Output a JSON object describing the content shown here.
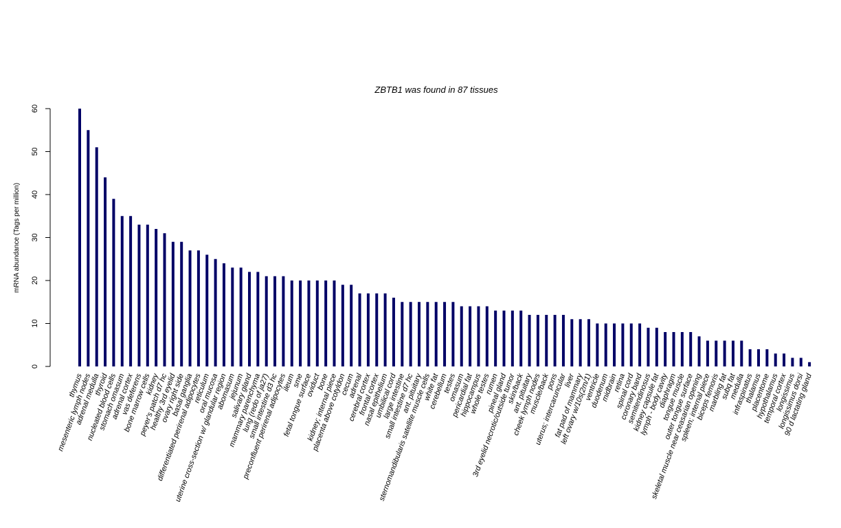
{
  "chart_data": {
    "type": "bar",
    "title": "ZBTB1  was found in  87  tissues",
    "ylabel": "mRNA abundance (Tags per million)",
    "xlabel": "",
    "ylim": [
      0,
      60
    ],
    "yticks": [
      0,
      10,
      20,
      30,
      40,
      50,
      60
    ],
    "bar_color": "#000066",
    "categories": [
      "thymus",
      "mesenteric lymph nodes",
      "adrenal medulla",
      "thyroid",
      "nucleated blood cells",
      "stomach omasum",
      "adrenal cortex",
      "vas deferens",
      "bone marrow cells",
      "kidney",
      "peyer's patch d7 hc",
      "healthy 3rd eyelid",
      "ovary right side",
      "basal ganglia",
      "differentiated perirenal adipocytes",
      "reticulum",
      "oral mucosa",
      "uterine cross-section w/ glandular region",
      "abomasum",
      "jejunum",
      "salivary gland",
      "mammary parenchyma",
      "lung (redo of ja27)",
      "small intestine d3 hc",
      "preconfluent perirenal adipocytes",
      "ileum",
      "sme",
      "fetal tongue surface",
      "oviduct",
      "bone",
      "kidney; internal piece",
      "placenta above cotyldon",
      "cecum",
      "adrenal",
      "cerebral cortex",
      "frontal cortex",
      "nasal epithelium",
      "umbilical cord",
      "large intestine",
      "small intestine d7 hc",
      "ant. pituitary",
      "sternomandibularis satellite muscle cells",
      "white fat",
      "cerebellum",
      "testes",
      "omasum",
      "pericardial fat",
      "hippocampus",
      "whole testes",
      "rumen",
      "pineal gland",
      "3rd eyelid necrotic/outside tumor",
      "skin/back",
      "ant. pituitary",
      "cheek lymph nodes",
      "muscle/back",
      "pons",
      "uterus; intercaruncular",
      "liver",
      "fat pad of mammary",
      "left ovary w/10s(2m/1)",
      "ventricle",
      "duodenum",
      "midbrain",
      "retina",
      "spinal cord",
      "coronary band",
      "semitendinosus",
      "kidney capsule fat",
      "lymph - body cavity",
      "diaphragm",
      "tongue muscle",
      "outer tongue surface",
      "skeletal muscle near ceasarian opening",
      "spleen; internal piece",
      "biceps femoris",
      "marbling fat",
      "subq fat",
      "medulla",
      "infraspinatus",
      "thalamus",
      "placentome",
      "hypothalamus",
      "temporal cortex",
      "longissimus",
      "longissimus dorsi",
      "90 d lactating gland"
    ],
    "values": [
      60,
      55,
      51,
      44,
      39,
      35,
      35,
      33,
      33,
      32,
      31,
      29,
      29,
      27,
      27,
      26,
      25,
      24,
      23,
      23,
      22,
      22,
      21,
      21,
      21,
      20,
      20,
      20,
      20,
      20,
      20,
      19,
      19,
      17,
      17,
      17,
      17,
      16,
      15,
      15,
      15,
      15,
      15,
      15,
      15,
      14,
      14,
      14,
      14,
      13,
      13,
      13,
      13,
      12,
      12,
      12,
      12,
      12,
      11,
      11,
      11,
      10,
      10,
      10,
      10,
      10,
      10,
      9,
      9,
      8,
      8,
      8,
      8,
      7,
      6,
      6,
      6,
      6,
      6,
      4,
      4,
      4,
      3,
      3,
      2,
      2,
      1
    ]
  }
}
